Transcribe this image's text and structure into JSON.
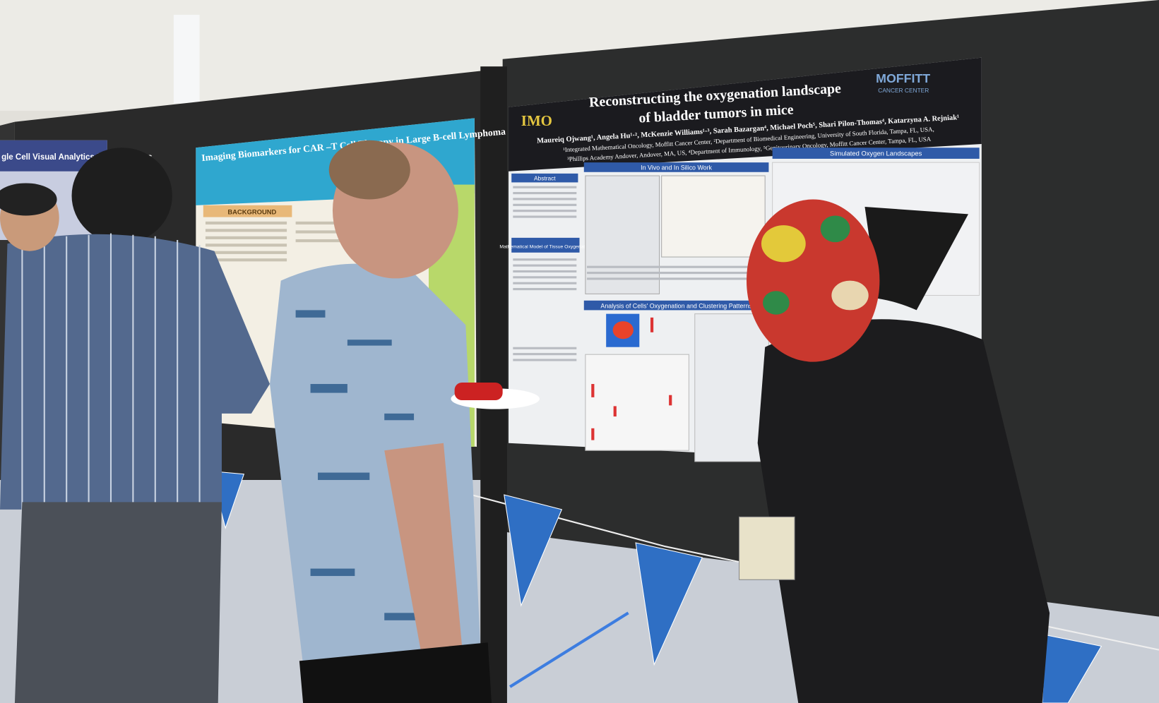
{
  "right_poster": {
    "title_line1": "Reconstructing the oxygenation landscape",
    "title_line2": "of bladder tumors in mice",
    "logo_left": "IMO",
    "logo_right": "MOFFITT",
    "logo_right_sub": "CANCER CENTER",
    "authors": "Maureiq Ojwang¹, Angela Hu¹·², McKenzie Williams¹·³, Sarah Bazargan⁴, Michael Poch⁵, Shari Pilon-Thomas⁴, Katarzyna A. Rejniak¹",
    "affiliations_1": "¹Integrated Mathematical Oncology, Moffitt Cancer Center, ²Department of Biomedical Engineering, University of South Florida, Tampa, FL, USA,",
    "affiliations_2": "³Phillips Academy Andover, Andover, MA, US, ⁴Department of Immunology, ⁵Genitourinary Oncology, Moffitt Cancer Center, Tampa, FL, USA",
    "sections": [
      "Abstract",
      "In Vivo and In Silico Work",
      "Simulated Oxygen Landscapes",
      "Mathematical Model of Tissue Oxygenation",
      "Analysis of Cells' Oxygenation and Clustering Patterns"
    ]
  },
  "left_poster": {
    "title": "Imaging Biomarkers for CAR –T Cell Therapy in Large B-cell Lymphoma",
    "sections": [
      "BACKGROUND"
    ]
  },
  "far_left_poster": {
    "title": "gle Cell Visual Analytics for Multiomics"
  }
}
